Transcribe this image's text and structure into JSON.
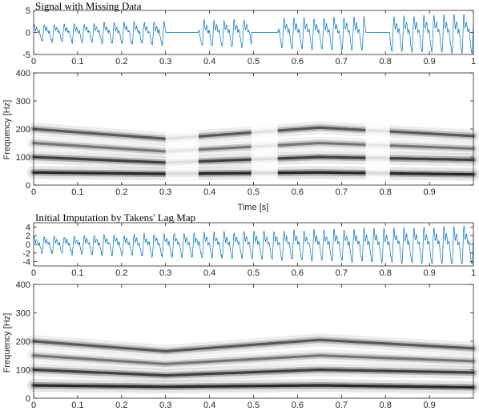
{
  "chart_data": [
    {
      "type": "line",
      "title": "Signal with Missing Data",
      "xlim": [
        0,
        1
      ],
      "ylim": [
        -5,
        5
      ],
      "xticks": [
        "0",
        "0.1",
        "0.2",
        "0.3",
        "0.4",
        "0.5",
        "0.6",
        "0.7",
        "0.8",
        "0.9",
        "1"
      ],
      "yticks": [
        "-5",
        "0",
        "5"
      ],
      "missing_intervals": [
        [
          0.3,
          0.375
        ],
        [
          0.495,
          0.555
        ],
        [
          0.755,
          0.81
        ]
      ],
      "line_color": "#0072bd"
    },
    {
      "type": "heatmap",
      "title": "",
      "ylabel": "Frequency [Hz]",
      "xlabel": "Time [s]",
      "xlim": [
        0,
        1
      ],
      "ylim": [
        0,
        400
      ],
      "xticks": [
        "0",
        "0.1",
        "0.2",
        "0.3",
        "0.4",
        "0.5",
        "0.6",
        "0.7",
        "0.8",
        "0.9"
      ],
      "yticks": [
        "0",
        "100",
        "200",
        "300",
        "400"
      ],
      "colormap": "gray-inverted",
      "bands_hz": [
        {
          "t": [
            0,
            0.3,
            0.65,
            1.0
          ],
          "f": [
            45,
            40,
            45,
            38
          ]
        },
        {
          "t": [
            0,
            0.3,
            0.65,
            1.0
          ],
          "f": [
            100,
            80,
            100,
            90
          ]
        },
        {
          "t": [
            0,
            0.3,
            0.65,
            1.0
          ],
          "f": [
            150,
            120,
            150,
            130
          ]
        },
        {
          "t": [
            0,
            0.3,
            0.65,
            1.0
          ],
          "f": [
            200,
            165,
            205,
            175
          ]
        }
      ]
    },
    {
      "type": "line",
      "title": "Initial Imputation by Takens' Lag Map",
      "xlim": [
        0,
        1
      ],
      "ylim": [
        -5,
        5
      ],
      "xticks": [
        "0",
        "0.1",
        "0.2",
        "0.3",
        "0.4",
        "0.5",
        "0.6",
        "0.7",
        "0.8",
        "0.9",
        "1"
      ],
      "yticks": [
        "-4",
        "-2",
        "0",
        "2",
        "4"
      ],
      "line_color": "#0072bd"
    },
    {
      "type": "heatmap",
      "title": "",
      "ylabel": "Frequency [Hz]",
      "xlabel": "",
      "xlim": [
        0,
        1
      ],
      "ylim": [
        0,
        400
      ],
      "xticks": [
        "0",
        "0.1",
        "0.2",
        "0.3",
        "0.4",
        "0.5",
        "0.6",
        "0.7",
        "0.8",
        "0.9"
      ],
      "yticks": [
        "0",
        "100",
        "200",
        "300",
        "400"
      ],
      "colormap": "gray-inverted",
      "bands_hz": [
        {
          "t": [
            0,
            0.3,
            0.65,
            1.0
          ],
          "f": [
            45,
            40,
            45,
            38
          ]
        },
        {
          "t": [
            0,
            0.3,
            0.65,
            1.0
          ],
          "f": [
            100,
            80,
            100,
            90
          ]
        },
        {
          "t": [
            0,
            0.3,
            0.65,
            1.0
          ],
          "f": [
            150,
            120,
            150,
            130
          ]
        },
        {
          "t": [
            0,
            0.3,
            0.65,
            1.0
          ],
          "f": [
            200,
            165,
            205,
            175
          ]
        }
      ]
    }
  ]
}
